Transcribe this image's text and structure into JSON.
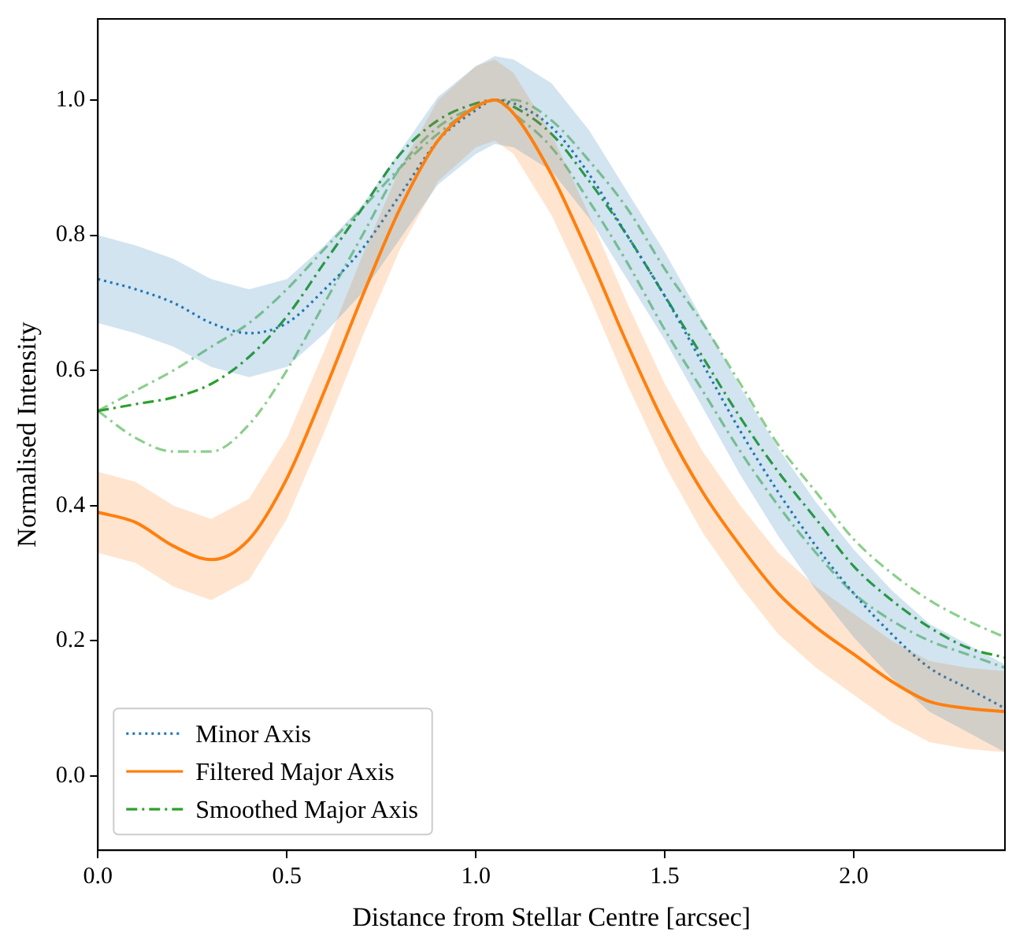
{
  "chart_data": {
    "type": "line",
    "xlabel": "Distance from Stellar Centre [arcsec]",
    "ylabel": "Normalised Intensity",
    "x": [
      0,
      0.1,
      0.2,
      0.3,
      0.4,
      0.5,
      0.6,
      0.7,
      0.8,
      0.9,
      1.0,
      1.05,
      1.1,
      1.2,
      1.3,
      1.4,
      1.5,
      1.6,
      1.7,
      1.8,
      1.9,
      2.0,
      2.1,
      2.2,
      2.3,
      2.4
    ],
    "series": [
      {
        "name": "Minor Axis",
        "color": "#1f77b4",
        "line_style": "dotted",
        "values": [
          0.735,
          0.72,
          0.7,
          0.67,
          0.655,
          0.67,
          0.72,
          0.78,
          0.86,
          0.94,
          0.985,
          1.0,
          0.995,
          0.96,
          0.89,
          0.8,
          0.71,
          0.61,
          0.51,
          0.42,
          0.34,
          0.27,
          0.21,
          0.16,
          0.13,
          0.1
        ],
        "lower": [
          0.67,
          0.655,
          0.635,
          0.605,
          0.59,
          0.605,
          0.655,
          0.715,
          0.795,
          0.875,
          0.92,
          0.935,
          0.93,
          0.895,
          0.825,
          0.735,
          0.645,
          0.545,
          0.445,
          0.355,
          0.275,
          0.205,
          0.145,
          0.095,
          0.065,
          0.035
        ],
        "upper": [
          0.8,
          0.785,
          0.765,
          0.735,
          0.72,
          0.735,
          0.785,
          0.845,
          0.925,
          1.005,
          1.05,
          1.065,
          1.06,
          1.025,
          0.955,
          0.865,
          0.775,
          0.675,
          0.575,
          0.485,
          0.405,
          0.335,
          0.275,
          0.225,
          0.195,
          0.165
        ]
      },
      {
        "name": "Filtered Major Axis",
        "color": "#ff7f0e",
        "line_style": "solid",
        "values": [
          0.39,
          0.375,
          0.34,
          0.32,
          0.35,
          0.44,
          0.57,
          0.71,
          0.84,
          0.94,
          0.99,
          1.0,
          0.98,
          0.89,
          0.77,
          0.64,
          0.52,
          0.42,
          0.34,
          0.27,
          0.22,
          0.18,
          0.14,
          0.11,
          0.1,
          0.095
        ],
        "lower": [
          0.33,
          0.315,
          0.28,
          0.26,
          0.29,
          0.38,
          0.51,
          0.65,
          0.78,
          0.88,
          0.93,
          0.94,
          0.92,
          0.83,
          0.71,
          0.58,
          0.46,
          0.36,
          0.28,
          0.21,
          0.16,
          0.12,
          0.08,
          0.05,
          0.04,
          0.035
        ],
        "upper": [
          0.45,
          0.435,
          0.4,
          0.38,
          0.41,
          0.5,
          0.63,
          0.77,
          0.9,
          1.0,
          1.05,
          1.06,
          1.04,
          0.95,
          0.83,
          0.7,
          0.58,
          0.48,
          0.4,
          0.33,
          0.28,
          0.24,
          0.2,
          0.17,
          0.16,
          0.155
        ]
      },
      {
        "name": "Smoothed Major Axis",
        "color": "#2ca02c",
        "line_style": "dashdot",
        "values": [
          0.54,
          0.55,
          0.56,
          0.58,
          0.62,
          0.68,
          0.76,
          0.84,
          0.92,
          0.97,
          0.995,
          1.0,
          0.99,
          0.95,
          0.88,
          0.8,
          0.71,
          0.62,
          0.53,
          0.45,
          0.38,
          0.31,
          0.26,
          0.22,
          0.19,
          0.175
        ]
      },
      {
        "color": "#8ccf8c",
        "line_style": "dashdot",
        "values": [
          0.54,
          0.57,
          0.6,
          0.635,
          0.67,
          0.72,
          0.78,
          0.84,
          0.9,
          0.95,
          0.99,
          1.0,
          1.0,
          0.97,
          0.91,
          0.84,
          0.75,
          0.67,
          0.58,
          0.49,
          0.42,
          0.35,
          0.3,
          0.26,
          0.23,
          0.205
        ]
      },
      {
        "color": "#8ccf8c",
        "line_style": "dashdot",
        "values": [
          0.54,
          0.5,
          0.48,
          0.48,
          0.52,
          0.6,
          0.7,
          0.8,
          0.9,
          0.96,
          0.99,
          1.0,
          0.98,
          0.93,
          0.85,
          0.76,
          0.66,
          0.57,
          0.48,
          0.4,
          0.33,
          0.27,
          0.23,
          0.2,
          0.18,
          0.16
        ]
      }
    ],
    "xlim": [
      0,
      2.4
    ],
    "xticks": [
      {
        "value": 0,
        "label": "0.0"
      },
      0.5,
      {
        "value": 1,
        "label": "1.0"
      },
      1.5,
      {
        "value": 2,
        "label": "2.0"
      }
    ],
    "ylim": [
      -0.11,
      1.12
    ],
    "yticks": [
      {
        "value": 0,
        "label": "0.0"
      },
      0.2,
      0.4,
      0.6,
      0.8,
      {
        "value": 1,
        "label": "1.0"
      }
    ],
    "grid": false,
    "legend": "bottom left",
    "marker": "none"
  }
}
